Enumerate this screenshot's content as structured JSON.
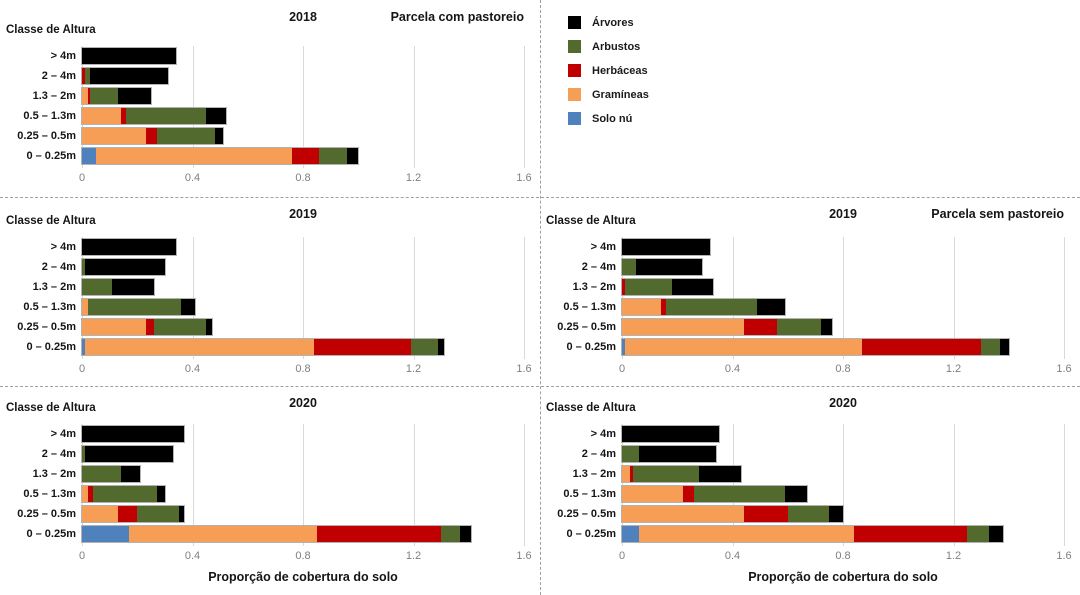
{
  "figure": {
    "background": "#ffffff",
    "divider_color": "#a0a0a0",
    "left_column_header": "Parcela com pastoreio",
    "right_column_header": "Parcela sem pastoreio"
  },
  "palette": {
    "arvores": "#000000",
    "arbustos": "#526a2e",
    "herbaceas": "#c00000",
    "gramineas": "#f79e56",
    "solo_nu": "#4f81bd"
  },
  "legend": {
    "items": [
      {
        "label": "Árvores",
        "color": "#000000"
      },
      {
        "label": "Arbustos",
        "color": "#526a2e"
      },
      {
        "label": "Herbáceas",
        "color": "#c00000"
      },
      {
        "label": "Gramíneas",
        "color": "#f79e56"
      },
      {
        "label": "Solo nú",
        "color": "#4f81bd"
      }
    ]
  },
  "chart_data": [
    {
      "type": "bar",
      "orientation": "horizontal-stacked",
      "id": "chart-2018-com-pastoreio",
      "position": "top-left",
      "title": "2018",
      "subtitle": "Parcela com pastoreio",
      "ylabel": "Classe de Altura",
      "xlabel": "",
      "xlim": [
        0,
        1.6
      ],
      "xtick_labels": [
        "0",
        "0.4",
        "0.8",
        "1.2",
        "1.6"
      ],
      "grid": "vertical-light",
      "categories": [
        "> 4m",
        "2 – 4m",
        "1.3 – 2m",
        "0.5 – 1.3m",
        "0.25 – 0.5m",
        "0 – 0.25m"
      ],
      "series": [
        {
          "name": "Solo nú",
          "color": "#4f81bd",
          "values": [
            0,
            0,
            0,
            0,
            0,
            0.05
          ]
        },
        {
          "name": "Gramíneas",
          "color": "#f79e56",
          "values": [
            0,
            0,
            0.02,
            0.14,
            0.23,
            0.71
          ]
        },
        {
          "name": "Herbáceas",
          "color": "#c00000",
          "values": [
            0,
            0.01,
            0.01,
            0.02,
            0.04,
            0.1
          ]
        },
        {
          "name": "Arbustos",
          "color": "#526a2e",
          "values": [
            0,
            0.02,
            0.1,
            0.29,
            0.21,
            0.1
          ]
        },
        {
          "name": "Árvores",
          "color": "#000000",
          "values": [
            0.34,
            0.28,
            0.12,
            0.07,
            0.03,
            0.04
          ]
        }
      ]
    },
    {
      "type": "bar",
      "orientation": "horizontal-stacked",
      "id": "chart-2019-com-pastoreio",
      "position": "mid-left",
      "title": "2019",
      "subtitle": "",
      "ylabel": "Classe de Altura",
      "xlabel": "",
      "xlim": [
        0,
        1.6
      ],
      "xtick_labels": [
        "0",
        "0.4",
        "0.8",
        "1.2",
        "1.6"
      ],
      "grid": "vertical-light",
      "categories": [
        "> 4m",
        "2 – 4m",
        "1.3 – 2m",
        "0.5 – 1.3m",
        "0.25 – 0.5m",
        "0 – 0.25m"
      ],
      "series": [
        {
          "name": "Solo nú",
          "color": "#4f81bd",
          "values": [
            0,
            0,
            0,
            0,
            0,
            0.01
          ]
        },
        {
          "name": "Gramíneas",
          "color": "#f79e56",
          "values": [
            0,
            0,
            0,
            0.02,
            0.23,
            0.83
          ]
        },
        {
          "name": "Herbáceas",
          "color": "#c00000",
          "values": [
            0,
            0,
            0,
            0,
            0.03,
            0.35
          ]
        },
        {
          "name": "Arbustos",
          "color": "#526a2e",
          "values": [
            0,
            0.01,
            0.11,
            0.34,
            0.19,
            0.1
          ]
        },
        {
          "name": "Árvores",
          "color": "#000000",
          "values": [
            0.34,
            0.29,
            0.15,
            0.05,
            0.02,
            0.02
          ]
        }
      ]
    },
    {
      "type": "bar",
      "orientation": "horizontal-stacked",
      "id": "chart-2019-sem-pastoreio",
      "position": "mid-right",
      "title": "2019",
      "subtitle": "Parcela sem pastoreio",
      "ylabel": "Classe de Altura",
      "xlabel": "",
      "xlim": [
        0,
        1.6
      ],
      "xtick_labels": [
        "0",
        "0.4",
        "0.8",
        "1.2",
        "1.6"
      ],
      "grid": "vertical-light",
      "categories": [
        "> 4m",
        "2 – 4m",
        "1.3 – 2m",
        "0.5 – 1.3m",
        "0.25 – 0.5m",
        "0 – 0.25m"
      ],
      "series": [
        {
          "name": "Solo nú",
          "color": "#4f81bd",
          "values": [
            0,
            0,
            0,
            0,
            0,
            0.01
          ]
        },
        {
          "name": "Gramíneas",
          "color": "#f79e56",
          "values": [
            0,
            0,
            0,
            0.14,
            0.44,
            0.86
          ]
        },
        {
          "name": "Herbáceas",
          "color": "#c00000",
          "values": [
            0,
            0,
            0.01,
            0.02,
            0.12,
            0.43
          ]
        },
        {
          "name": "Arbustos",
          "color": "#526a2e",
          "values": [
            0,
            0.05,
            0.17,
            0.33,
            0.16,
            0.07
          ]
        },
        {
          "name": "Árvores",
          "color": "#000000",
          "values": [
            0.32,
            0.24,
            0.15,
            0.1,
            0.04,
            0.03
          ]
        }
      ]
    },
    {
      "type": "bar",
      "orientation": "horizontal-stacked",
      "id": "chart-2020-com-pastoreio",
      "position": "bot-left",
      "title": "2020",
      "subtitle": "",
      "ylabel": "Classe de Altura",
      "xlabel": "Proporção de cobertura do solo",
      "xlim": [
        0,
        1.6
      ],
      "xtick_labels": [
        "0",
        "0.4",
        "0.8",
        "1.2",
        "1.6"
      ],
      "grid": "vertical-light",
      "categories": [
        "> 4m",
        "2 – 4m",
        "1.3 – 2m",
        "0.5 – 1.3m",
        "0.25 – 0.5m",
        "0 – 0.25m"
      ],
      "series": [
        {
          "name": "Solo nú",
          "color": "#4f81bd",
          "values": [
            0,
            0,
            0,
            0,
            0,
            0.17
          ]
        },
        {
          "name": "Gramíneas",
          "color": "#f79e56",
          "values": [
            0,
            0,
            0,
            0.02,
            0.13,
            0.68
          ]
        },
        {
          "name": "Herbáceas",
          "color": "#c00000",
          "values": [
            0,
            0,
            0,
            0.02,
            0.07,
            0.45
          ]
        },
        {
          "name": "Arbustos",
          "color": "#526a2e",
          "values": [
            0,
            0.01,
            0.14,
            0.23,
            0.15,
            0.07
          ]
        },
        {
          "name": "Árvores",
          "color": "#000000",
          "values": [
            0.37,
            0.32,
            0.07,
            0.03,
            0.02,
            0.04
          ]
        }
      ]
    },
    {
      "type": "bar",
      "orientation": "horizontal-stacked",
      "id": "chart-2020-sem-pastoreio",
      "position": "bot-right",
      "title": "2020",
      "subtitle": "",
      "ylabel": "Classe de Altura",
      "xlabel": "Proporção de cobertura do solo",
      "xlim": [
        0,
        1.6
      ],
      "xtick_labels": [
        "0",
        "0.4",
        "0.8",
        "1.2",
        "1.6"
      ],
      "grid": "vertical-light",
      "categories": [
        "> 4m",
        "2 – 4m",
        "1.3 – 2m",
        "0.5 – 1.3m",
        "0.25 – 0.5m",
        "0 – 0.25m"
      ],
      "series": [
        {
          "name": "Solo nú",
          "color": "#4f81bd",
          "values": [
            0,
            0,
            0,
            0,
            0,
            0.06
          ]
        },
        {
          "name": "Gramíneas",
          "color": "#f79e56",
          "values": [
            0,
            0,
            0.03,
            0.22,
            0.44,
            0.78
          ]
        },
        {
          "name": "Herbáceas",
          "color": "#c00000",
          "values": [
            0,
            0,
            0.01,
            0.04,
            0.16,
            0.41
          ]
        },
        {
          "name": "Arbustos",
          "color": "#526a2e",
          "values": [
            0,
            0.06,
            0.24,
            0.33,
            0.15,
            0.08
          ]
        },
        {
          "name": "Árvores",
          "color": "#000000",
          "values": [
            0.35,
            0.28,
            0.15,
            0.08,
            0.05,
            0.05
          ]
        }
      ]
    }
  ]
}
